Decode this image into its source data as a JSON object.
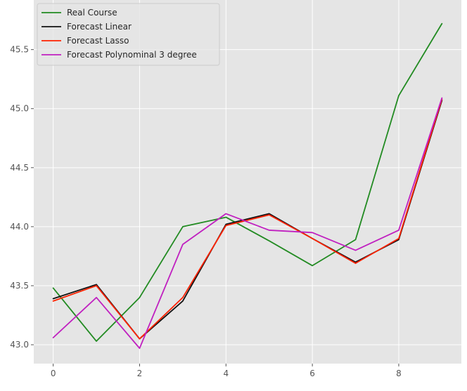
{
  "chart_data": {
    "type": "line",
    "title": "",
    "xlabel": "",
    "ylabel": "",
    "x": [
      0,
      1,
      2,
      3,
      4,
      5,
      6,
      7,
      8,
      9
    ],
    "xlim": [
      -0.45,
      9.45
    ],
    "ylim": [
      42.84,
      45.92
    ],
    "xticks": [
      0,
      2,
      4,
      6,
      8
    ],
    "yticks": [
      43.0,
      43.5,
      44.0,
      44.5,
      45.0,
      45.5
    ],
    "xtick_labels": [
      "0",
      "2",
      "4",
      "6",
      "8"
    ],
    "ytick_labels": [
      "43.0",
      "43.5",
      "44.0",
      "44.5",
      "45.0",
      "45.5"
    ],
    "grid": true,
    "legend_position": "top-left",
    "background": "#e5e5e5",
    "grid_color": "#ffffff",
    "series": [
      {
        "name": "Real Course",
        "color": "#228b22",
        "values": [
          43.48,
          43.03,
          43.4,
          44.0,
          44.08,
          43.88,
          43.67,
          43.89,
          45.11,
          45.72
        ]
      },
      {
        "name": "Forecast Linear",
        "color": "#111111",
        "values": [
          43.39,
          43.51,
          43.05,
          43.37,
          44.02,
          44.11,
          43.9,
          43.7,
          43.89,
          45.07
        ]
      },
      {
        "name": "Forecast Lasso",
        "color": "#ff2200",
        "values": [
          43.37,
          43.5,
          43.05,
          43.4,
          44.01,
          44.1,
          43.9,
          43.69,
          43.9,
          45.08
        ]
      },
      {
        "name": "Forecast Polynominal 3 degree",
        "color": "#c020c0",
        "values": [
          43.06,
          43.4,
          42.97,
          43.85,
          44.11,
          43.97,
          43.95,
          43.8,
          43.97,
          45.09
        ]
      }
    ]
  }
}
